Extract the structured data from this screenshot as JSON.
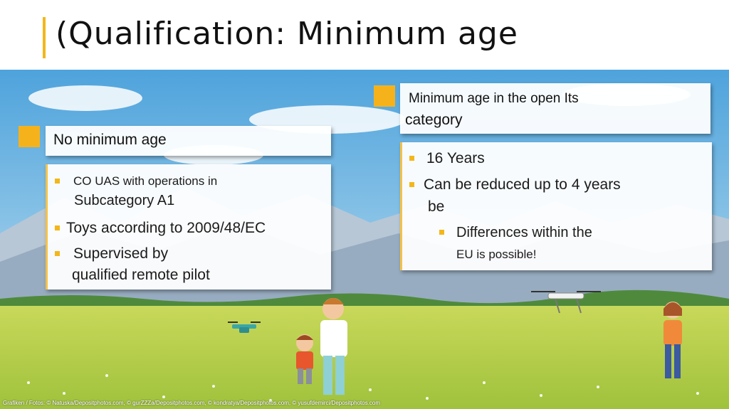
{
  "title": "(Qualification: Minimum age",
  "left_box": {
    "heading": "No minimum age",
    "items": [
      {
        "line1": "CO UAS with operations in",
        "line2": "Subcategory A1"
      },
      {
        "line1": "Toys according to 2009/48/EC"
      },
      {
        "line1": "Supervised by",
        "line2": "qualified remote pilot"
      }
    ]
  },
  "right_box": {
    "heading_line1": "Minimum age in the open Its",
    "heading_line2": "category",
    "items": [
      {
        "line1": "16 Years"
      },
      {
        "line1": "Can be reduced up to 4 years",
        "line2": "be"
      }
    ],
    "sub_item": {
      "line1": "Differences within the",
      "line2": "EU is possible!"
    }
  },
  "credit": "Grafiken / Fotos: © Natuska/Depositphotos.com, © gurZZZa/Depositphotos.com, © kondratya/Depositphotos.com, © yusufdemirci/Depositphotos.com",
  "colors": {
    "accent": "#f6b21b",
    "sky": "#6fb7e4",
    "grass": "#b8d04a"
  }
}
